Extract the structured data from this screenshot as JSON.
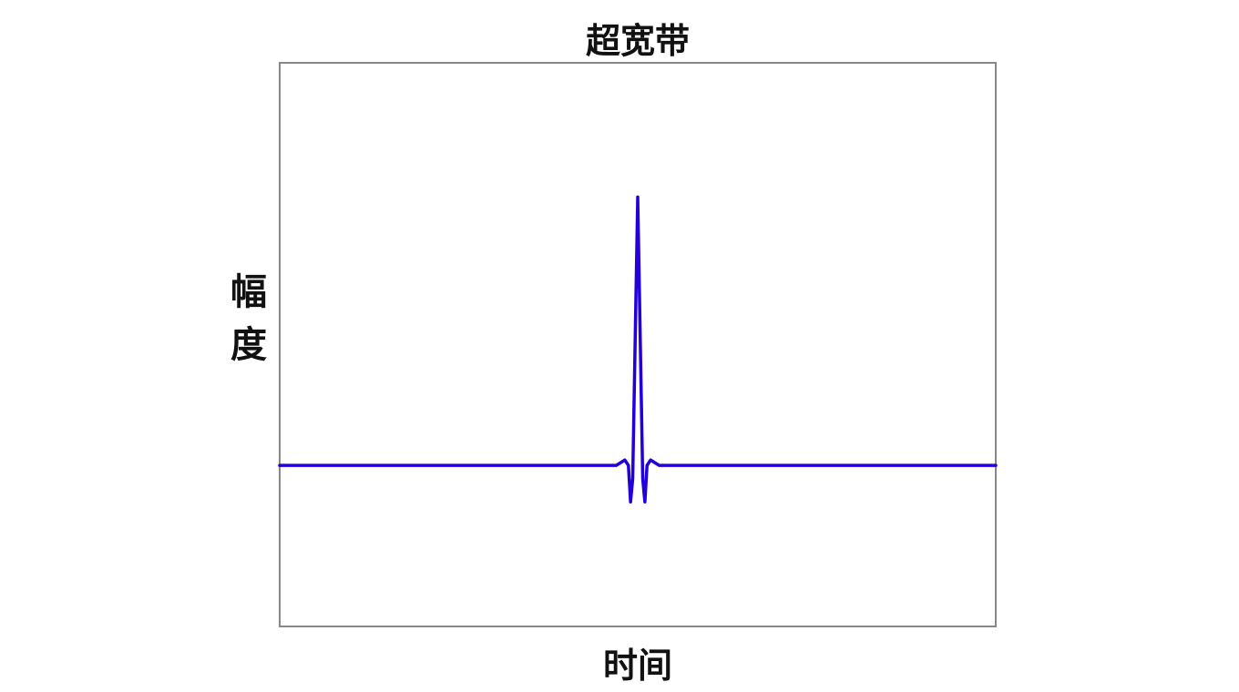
{
  "chart_data": {
    "type": "line",
    "title": "超宽带",
    "xlabel": "时间",
    "ylabel": "幅度",
    "xlim": [
      0,
      1
    ],
    "ylim": [
      -0.6,
      1.5
    ],
    "grid": false,
    "ticks": false,
    "series": [
      {
        "color": "#2200dd",
        "x": [
          0,
          0.47,
          0.482,
          0.487,
          0.49,
          0.493,
          0.496,
          0.5,
          0.504,
          0.507,
          0.51,
          0.513,
          0.518,
          0.53,
          1
        ],
        "y": [
          0,
          0,
          0.02,
          0,
          -0.136,
          -0.05,
          0.4,
          1.0,
          0.4,
          -0.05,
          -0.136,
          0,
          0.02,
          0,
          0
        ]
      }
    ],
    "frame_color": "#888888"
  }
}
